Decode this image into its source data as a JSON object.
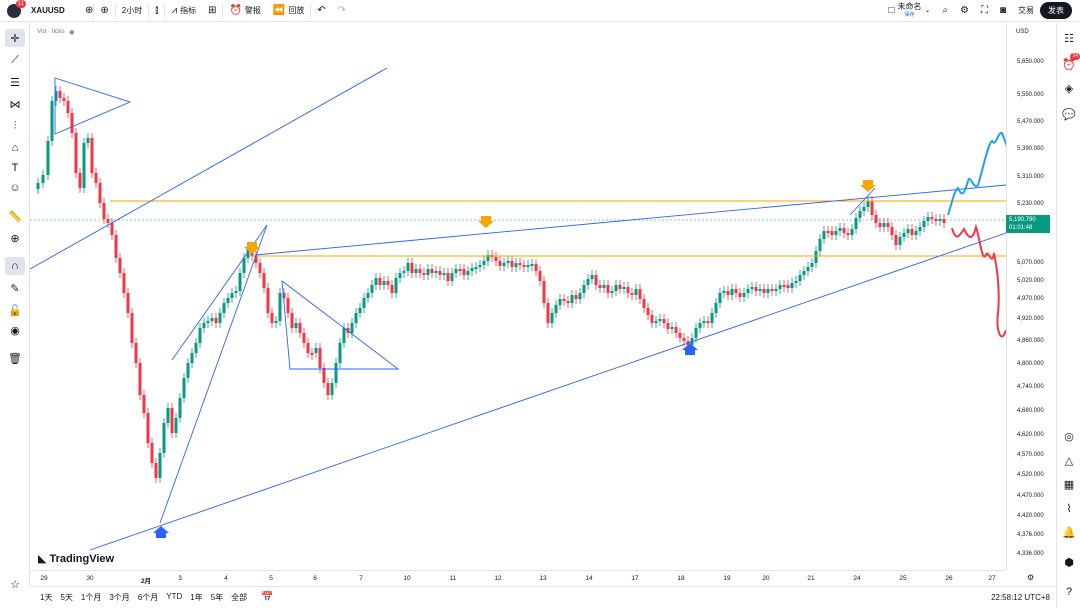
{
  "header": {
    "notification_count": "11",
    "symbol": "XAUUSD",
    "interval": "2小时",
    "indicators_label": "指标",
    "alert_label": "警报",
    "replay_label": "回放",
    "layout_name": "未命名",
    "layout_status": "保存",
    "trade_label": "交易",
    "publish_label": "发表"
  },
  "legend": {
    "volume_label": "Vol · ticks"
  },
  "price_axis": {
    "currency": "USD",
    "labels": [
      "5,650.000",
      "5,550.000",
      "5,470.000",
      "5,390.000",
      "5,310.000",
      "5,230.000",
      "5,070.000",
      "5,020.000",
      "4,970.000",
      "4,920.000",
      "4,860.000",
      "4,800.000",
      "4,740.000",
      "4,680.000",
      "4,620.000",
      "4,570.000",
      "4,520.000",
      "4,470.000",
      "4,420.000",
      "4,376.000",
      "4,336.000"
    ],
    "current_price": "5,190.790",
    "countdown": "01:01:48"
  },
  "time_axis": {
    "labels": [
      "29",
      "30",
      "2月",
      "3",
      "4",
      "5",
      "6",
      "7",
      "10",
      "11",
      "12",
      "13",
      "14",
      "17",
      "18",
      "19",
      "20",
      "21",
      "24",
      "25",
      "26",
      "27"
    ]
  },
  "watermark": "TradingView",
  "bottom": {
    "ranges": [
      "1天",
      "5天",
      "1个月",
      "3个月",
      "6个月",
      "YTD",
      "1年",
      "5年",
      "全部"
    ],
    "clock": "22:58:12 UTC+8"
  },
  "right_sidebar": {
    "alerts_badge": "24"
  },
  "colors": {
    "up": "#089981",
    "down": "#f23645",
    "trendline": "#2962ff",
    "horizontal": "#f7a600",
    "drawing_blue": "#1fa3e8",
    "drawing_red": "#f23645"
  }
}
